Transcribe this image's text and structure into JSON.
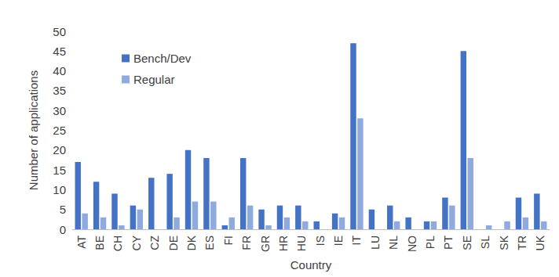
{
  "chart_data": {
    "type": "bar",
    "categories": [
      "AT",
      "BE",
      "CH",
      "CY",
      "CZ",
      "DE",
      "DK",
      "ES",
      "FI",
      "FR",
      "GR",
      "HR",
      "HU",
      "IS",
      "IE",
      "IT",
      "LU",
      "NL",
      "NO",
      "PL",
      "PT",
      "SE",
      "SL",
      "SK",
      "TR",
      "UK"
    ],
    "series": [
      {
        "name": "Bench/Dev",
        "color": "#4472c4",
        "values": [
          17,
          12,
          9,
          6,
          13,
          14,
          20,
          18,
          1,
          18,
          5,
          6,
          6,
          2,
          4,
          47,
          5,
          6,
          3,
          2,
          8,
          45,
          0,
          0,
          8,
          9
        ]
      },
      {
        "name": "Regular",
        "color": "#8faadc",
        "values": [
          4,
          3,
          1,
          5,
          0,
          3,
          7,
          7,
          3,
          6,
          1,
          3,
          2,
          0,
          3,
          28,
          0,
          2,
          0,
          2,
          6,
          18,
          1,
          2,
          3,
          2
        ]
      }
    ],
    "x_label": "Country",
    "y_label": "Number of applications",
    "ylim": [
      0,
      50
    ],
    "yticks": [
      0,
      5,
      10,
      15,
      20,
      25,
      30,
      35,
      40,
      45,
      50
    ],
    "grid": false,
    "legend": "upper left"
  }
}
